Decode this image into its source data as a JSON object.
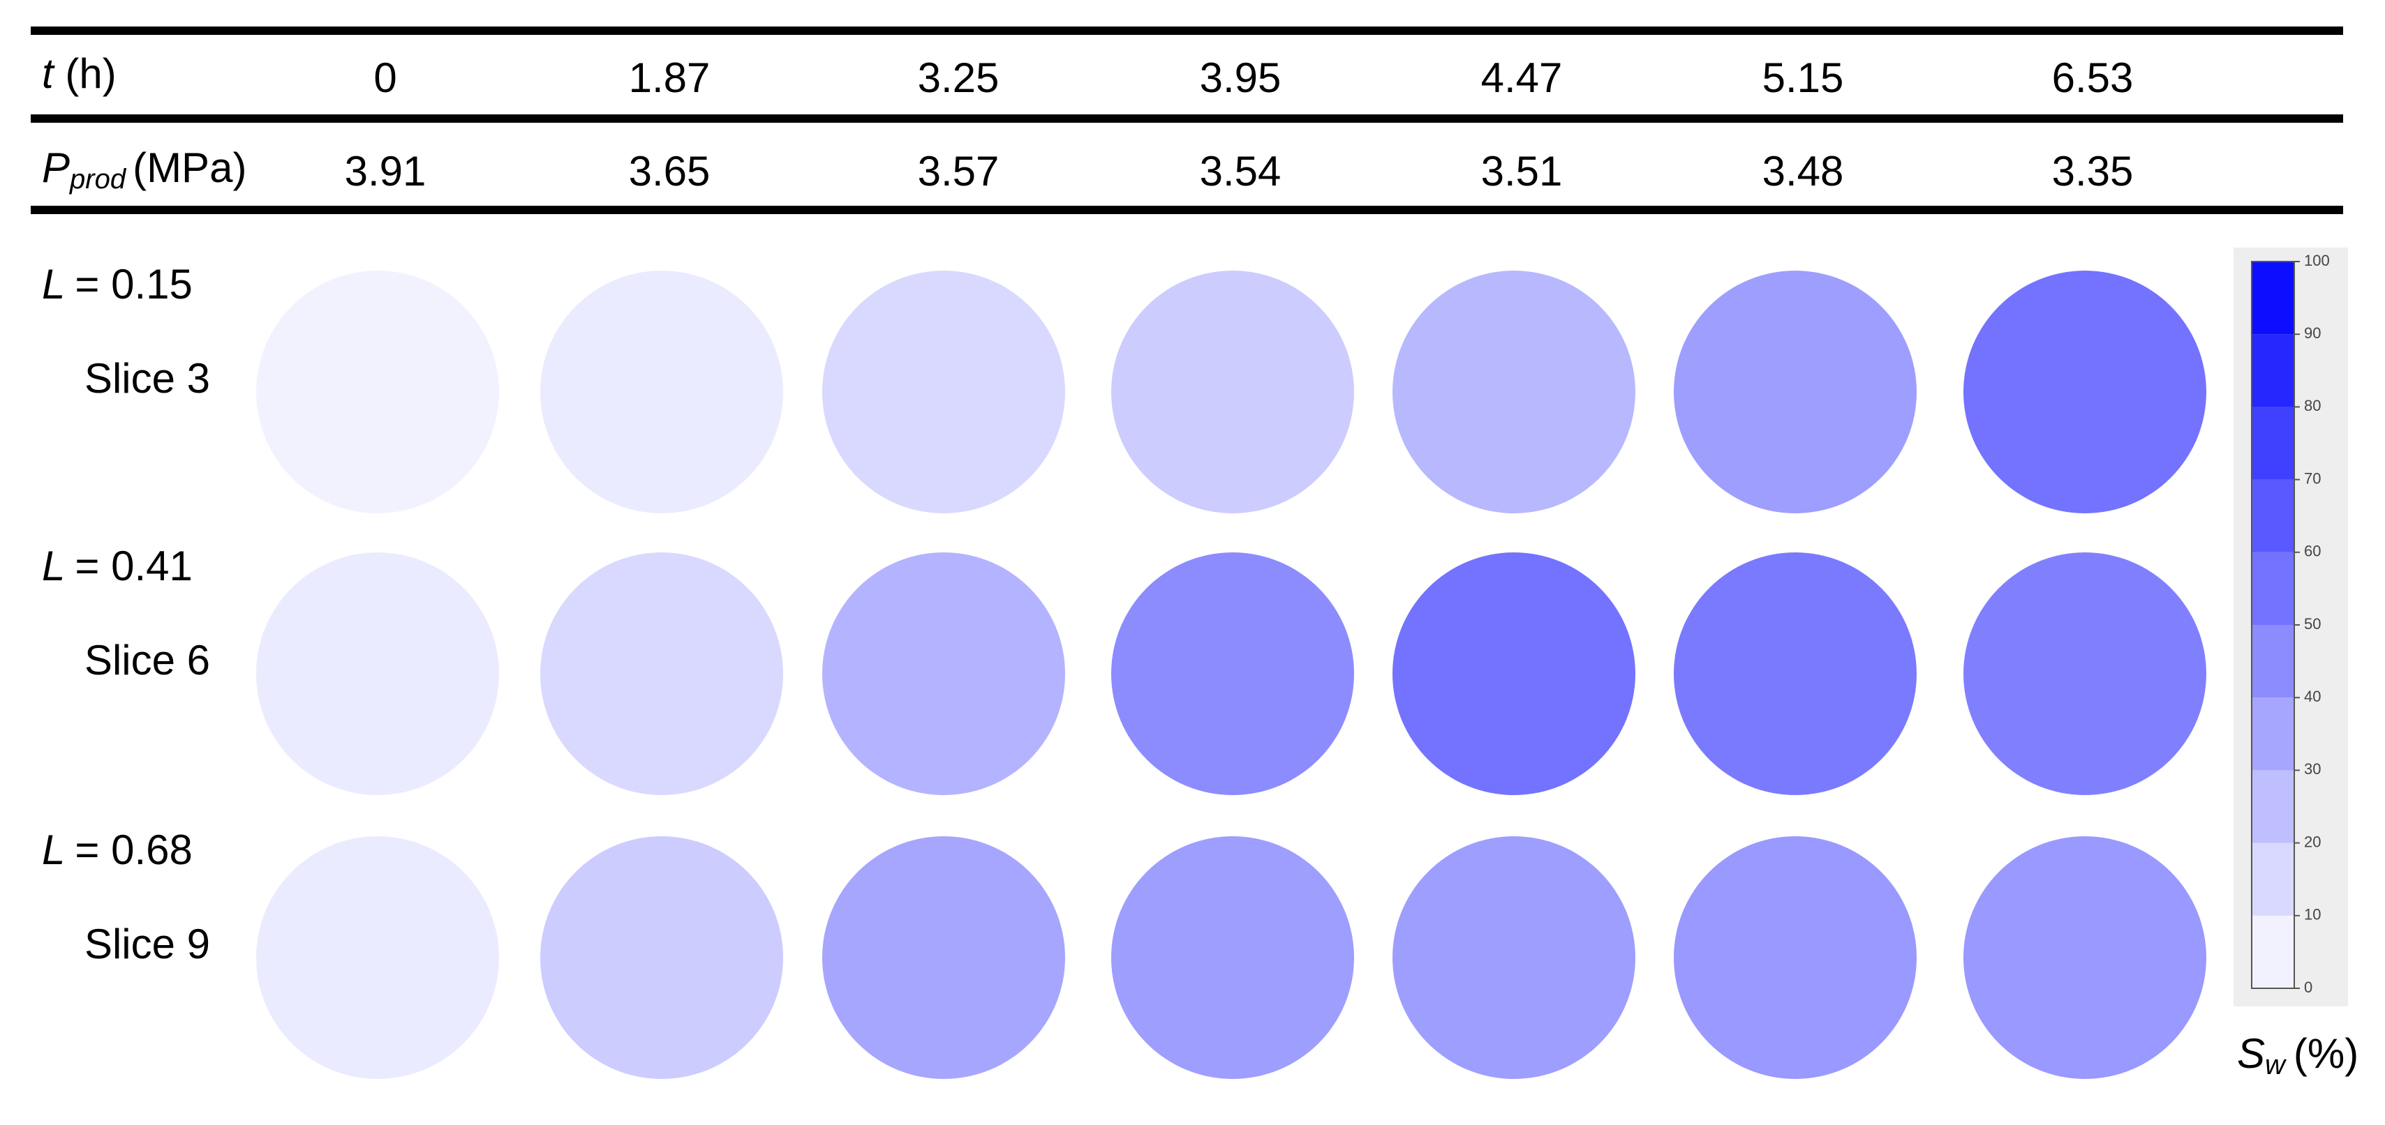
{
  "header": {
    "time": {
      "symbol": "t",
      "unit": "(h)",
      "values": [
        "0",
        "1.87",
        "3.25",
        "3.95",
        "4.47",
        "5.15",
        "6.53"
      ]
    },
    "pressure": {
      "symbol": "P",
      "subscript": "prod",
      "unit": "(MPa)",
      "values": [
        "3.91",
        "3.65",
        "3.57",
        "3.54",
        "3.51",
        "3.48",
        "3.35"
      ]
    }
  },
  "rows": [
    {
      "position": {
        "symbol": "L",
        "text": "= 0.15"
      },
      "slice": "Slice 3",
      "sw": [
        5,
        8,
        15,
        20,
        28,
        38,
        55
      ]
    },
    {
      "position": {
        "symbol": "L",
        "text": "= 0.41"
      },
      "slice": "Slice 6",
      "sw": [
        8,
        15,
        30,
        45,
        55,
        52,
        50
      ]
    },
    {
      "position": {
        "symbol": "L",
        "text": "= 0.68"
      },
      "slice": "Slice 9",
      "sw": [
        8,
        20,
        35,
        38,
        38,
        40,
        40
      ]
    }
  ],
  "colorbar": {
    "lim": [
      0,
      100
    ],
    "ticks": [
      0,
      10,
      20,
      30,
      40,
      50,
      60,
      70,
      80,
      90,
      100
    ],
    "color": "#0000ff",
    "label": {
      "symbol": "S",
      "subscript": "w",
      "unit": "(%)"
    }
  }
}
